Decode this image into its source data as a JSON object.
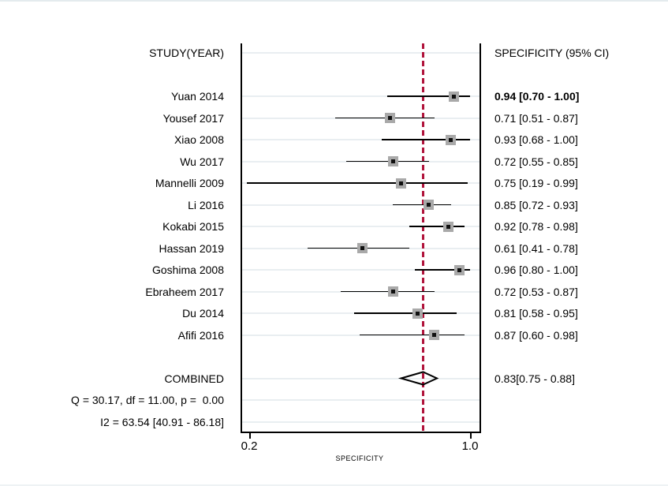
{
  "header": {
    "left": "STUDY(YEAR)",
    "right": "SPECIFICITY (95% CI)"
  },
  "chart_data": {
    "type": "forest",
    "title": "",
    "xlabel": "SPECIFICITY",
    "axis": {
      "min": 0.2,
      "max": 1.0,
      "ticks": [
        {
          "value": 0.2,
          "label": "0.2"
        },
        {
          "value": 1.0,
          "label": "1.0"
        }
      ],
      "label": "SPECIFICITY"
    },
    "studies": [
      {
        "label": "Yuan 2014",
        "est": 0.94,
        "lo": 0.7,
        "hi": 1.0,
        "ci_text": "0.94 [0.70 - 1.00]",
        "bold": true
      },
      {
        "label": "Yousef 2017",
        "est": 0.71,
        "lo": 0.51,
        "hi": 0.87,
        "ci_text": "0.71 [0.51 - 0.87]",
        "bold": false
      },
      {
        "label": "Xiao 2008",
        "est": 0.93,
        "lo": 0.68,
        "hi": 1.0,
        "ci_text": "0.93 [0.68 - 1.00]",
        "bold": false
      },
      {
        "label": "Wu 2017",
        "est": 0.72,
        "lo": 0.55,
        "hi": 0.85,
        "ci_text": "0.72 [0.55 - 0.85]",
        "bold": false
      },
      {
        "label": "Mannelli 2009",
        "est": 0.75,
        "lo": 0.19,
        "hi": 0.99,
        "ci_text": "0.75 [0.19 - 0.99]",
        "bold": false
      },
      {
        "label": "Li 2016",
        "est": 0.85,
        "lo": 0.72,
        "hi": 0.93,
        "ci_text": "0.85 [0.72 - 0.93]",
        "bold": false
      },
      {
        "label": "Kokabi 2015",
        "est": 0.92,
        "lo": 0.78,
        "hi": 0.98,
        "ci_text": "0.92 [0.78 - 0.98]",
        "bold": false
      },
      {
        "label": "Hassan 2019",
        "est": 0.61,
        "lo": 0.41,
        "hi": 0.78,
        "ci_text": "0.61 [0.41 - 0.78]",
        "bold": false
      },
      {
        "label": "Goshima 2008",
        "est": 0.96,
        "lo": 0.8,
        "hi": 1.0,
        "ci_text": "0.96 [0.80 - 1.00]",
        "bold": false
      },
      {
        "label": "Ebraheem 2017",
        "est": 0.72,
        "lo": 0.53,
        "hi": 0.87,
        "ci_text": "0.72 [0.53 - 0.87]",
        "bold": false
      },
      {
        "label": "Du 2014",
        "est": 0.81,
        "lo": 0.58,
        "hi": 0.95,
        "ci_text": "0.81 [0.58 - 0.95]",
        "bold": false
      },
      {
        "label": "Afifi 2016",
        "est": 0.87,
        "lo": 0.6,
        "hi": 0.98,
        "ci_text": "0.87 [0.60 - 0.98]",
        "bold": false
      }
    ],
    "combined": {
      "label": "COMBINED",
      "est": 0.83,
      "lo": 0.75,
      "hi": 0.88,
      "ci_text": "0.83[0.75 - 0.88]"
    },
    "heterogeneity": {
      "q_line": "Q = 30.17, df = 11.00, p =  0.00",
      "i2_line": "I2 = 63.54 [40.91 - 86.18]"
    },
    "ref_line_value": 0.83,
    "colors": {
      "ref_line": "#b0123a",
      "square": "#a9a9a9",
      "grid": "#e9eef1",
      "line": "#000000"
    }
  }
}
